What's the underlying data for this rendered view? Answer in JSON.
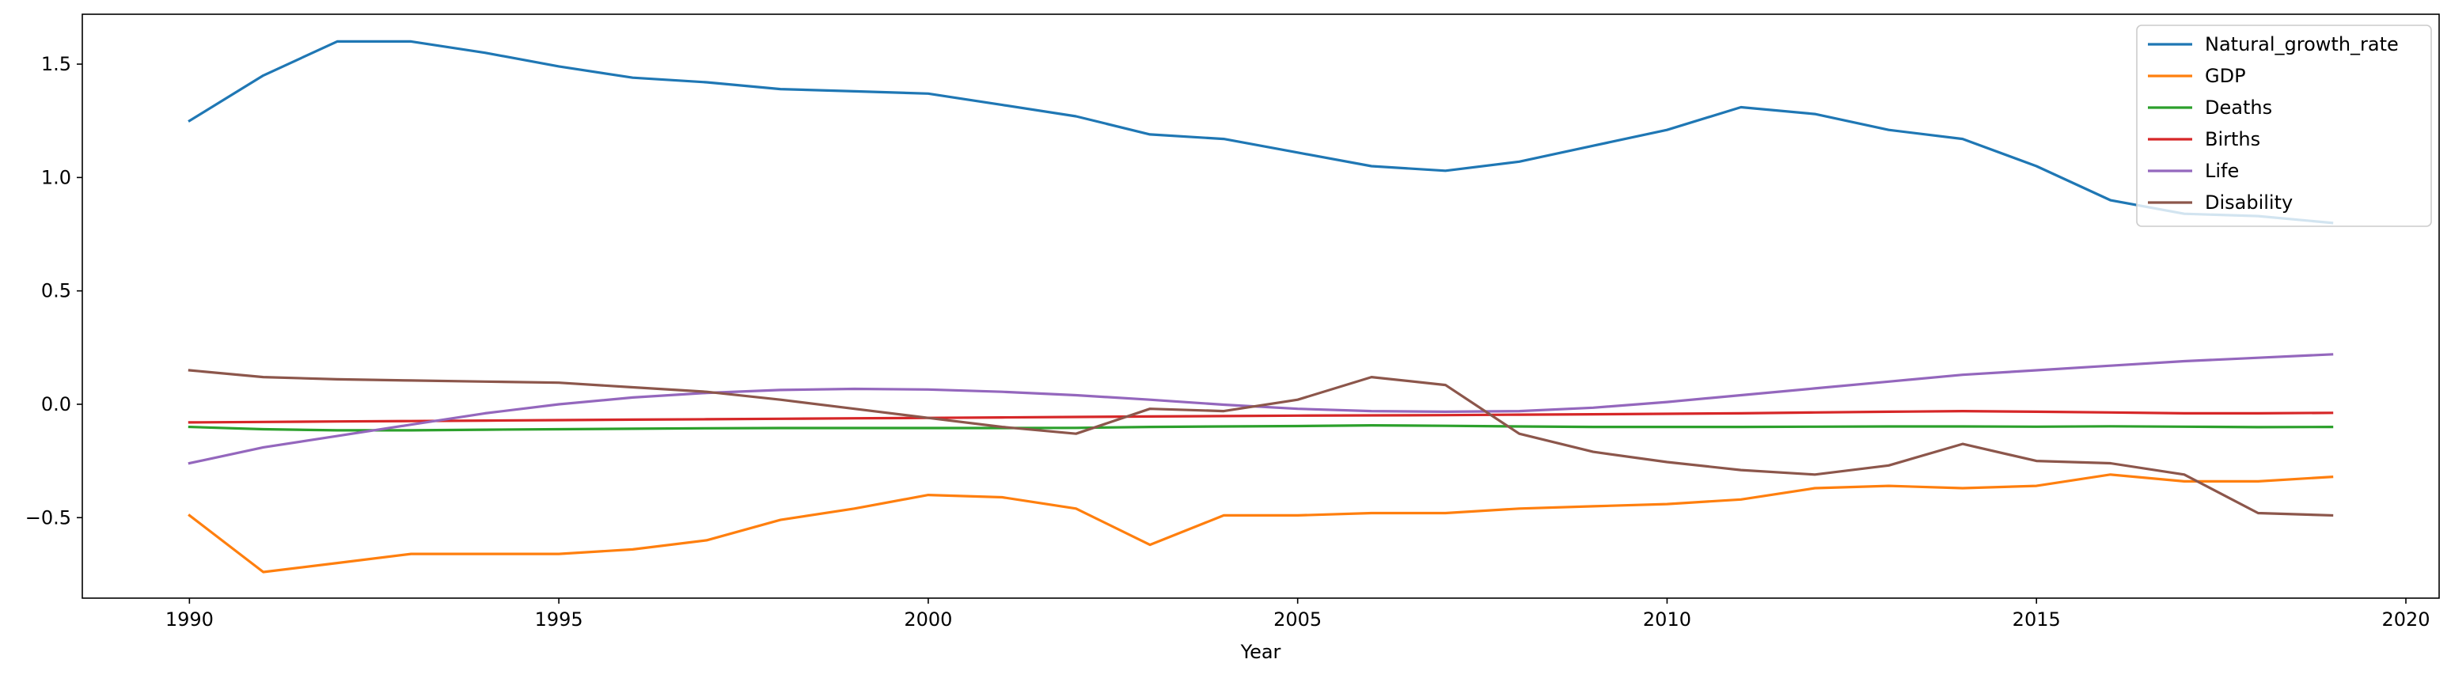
{
  "chart_data": {
    "type": "line",
    "title": "",
    "xlabel": "Year",
    "ylabel": "",
    "xlim": [
      1988.55,
      2020.45
    ],
    "ylim": [
      -0.855,
      1.72
    ],
    "xticks": [
      1990,
      1995,
      2000,
      2005,
      2010,
      2015,
      2020
    ],
    "yticks": [
      -0.5,
      0.0,
      0.5,
      1.0,
      1.5
    ],
    "ytick_labels": [
      "−0.5",
      "0.0",
      "0.5",
      "1.0",
      "1.5"
    ],
    "grid": false,
    "legend": "top-right",
    "x": [
      1990,
      1991,
      1992,
      1993,
      1994,
      1995,
      1996,
      1997,
      1998,
      1999,
      2000,
      2001,
      2002,
      2003,
      2004,
      2005,
      2006,
      2007,
      2008,
      2009,
      2010,
      2011,
      2012,
      2013,
      2014,
      2015,
      2016,
      2017,
      2018,
      2019
    ],
    "series": [
      {
        "name": "Natural_growth_rate",
        "color": "#1f77b4",
        "values": [
          1.25,
          1.45,
          1.6,
          1.6,
          1.55,
          1.49,
          1.44,
          1.42,
          1.39,
          1.38,
          1.37,
          1.32,
          1.27,
          1.19,
          1.17,
          1.11,
          1.05,
          1.03,
          1.07,
          1.14,
          1.21,
          1.31,
          1.28,
          1.21,
          1.17,
          1.05,
          0.9,
          0.84,
          0.83,
          0.8
        ]
      },
      {
        "name": "GDP",
        "color": "#ff7f0e",
        "values": [
          -0.49,
          -0.74,
          -0.7,
          -0.66,
          -0.66,
          -0.66,
          -0.64,
          -0.6,
          -0.51,
          -0.46,
          -0.4,
          -0.41,
          -0.46,
          -0.62,
          -0.49,
          -0.49,
          -0.48,
          -0.48,
          -0.46,
          -0.45,
          -0.44,
          -0.42,
          -0.37,
          -0.36,
          -0.37,
          -0.36,
          -0.31,
          -0.34,
          -0.34,
          -0.32
        ]
      },
      {
        "name": "Deaths",
        "color": "#2ca02c",
        "values": [
          -0.1,
          -0.11,
          -0.115,
          -0.115,
          -0.112,
          -0.11,
          -0.108,
          -0.106,
          -0.105,
          -0.105,
          -0.105,
          -0.105,
          -0.104,
          -0.1,
          -0.098,
          -0.096,
          -0.093,
          -0.095,
          -0.098,
          -0.1,
          -0.1,
          -0.1,
          -0.099,
          -0.098,
          -0.098,
          -0.099,
          -0.097,
          -0.099,
          -0.101,
          -0.1
        ]
      },
      {
        "name": "Births",
        "color": "#d62728",
        "values": [
          -0.08,
          -0.078,
          -0.076,
          -0.074,
          -0.072,
          -0.07,
          -0.068,
          -0.066,
          -0.064,
          -0.062,
          -0.06,
          -0.058,
          -0.056,
          -0.054,
          -0.052,
          -0.05,
          -0.049,
          -0.048,
          -0.046,
          -0.044,
          -0.042,
          -0.04,
          -0.036,
          -0.033,
          -0.03,
          -0.033,
          -0.036,
          -0.04,
          -0.04,
          -0.038
        ]
      },
      {
        "name": "Life",
        "color": "#9467bd",
        "values": [
          -0.26,
          -0.19,
          -0.14,
          -0.09,
          -0.04,
          0.0,
          0.03,
          0.05,
          0.063,
          0.068,
          0.065,
          0.055,
          0.04,
          0.02,
          -0.002,
          -0.02,
          -0.03,
          -0.033,
          -0.03,
          -0.015,
          0.01,
          0.04,
          0.07,
          0.1,
          0.13,
          0.15,
          0.17,
          0.19,
          0.205,
          0.22
        ]
      },
      {
        "name": "Disability",
        "color": "#8c564b",
        "values": [
          0.15,
          0.12,
          0.11,
          0.105,
          0.1,
          0.095,
          0.075,
          0.055,
          0.02,
          -0.02,
          -0.06,
          -0.1,
          -0.13,
          -0.02,
          -0.03,
          0.02,
          0.12,
          0.085,
          -0.13,
          -0.21,
          -0.255,
          -0.29,
          -0.31,
          -0.27,
          -0.175,
          -0.25,
          -0.26,
          -0.31,
          -0.48,
          -0.49
        ]
      }
    ]
  }
}
